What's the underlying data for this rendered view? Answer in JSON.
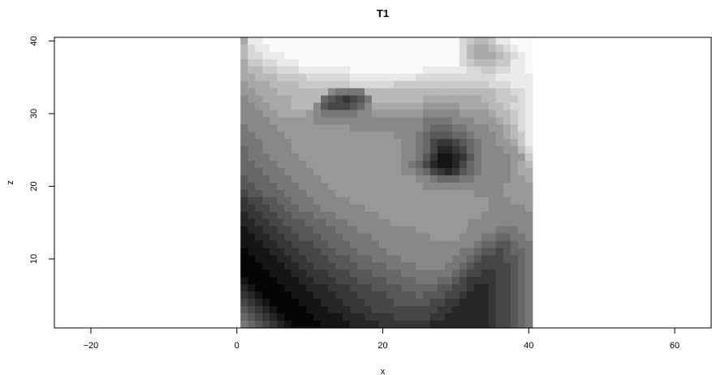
{
  "chart_data": {
    "type": "heatmap",
    "title": "T1",
    "xlabel": "x",
    "ylabel": "z",
    "xlim": [
      -25,
      65
    ],
    "ylim": [
      0.5,
      40.5
    ],
    "x_ticks": [
      -20,
      0,
      20,
      40,
      60
    ],
    "y_ticks": [
      10,
      20,
      30,
      40
    ],
    "colormap": "grayscale",
    "grid": false,
    "legend": "none",
    "image_x_range": [
      0.5,
      40.5
    ],
    "image_z_range": [
      0.5,
      40.5
    ],
    "description": "",
    "rows_top_to_bottom": [
      "AEEFFFFFFFFFFFFFFFFFFFFFFFFFFFDCBBCEEFFF",
      "BDEEFFFFFFFFFFFFFFFFFFFFFFFFFFDBAABCDEFF",
      "BDDEEEFFFFFFFFFFFFFFFFFFFFFFFFDBAAABCDEF",
      "ACCDDEEEFFFFFFFFFFFFFFFFFFFFFFDCBBBCCEEF",
      "ABBCCDDDEEEEEEEFFFFFFFFFFEEEEEEDDCCDDEEF",
      "AABBBCCCCDDDDDDEEEEEEEEEDDDDDDDDDDDEEEEE",
      "9AAABBBBCCCCCCCDDDDDDCCCCCCCCCCCCCDDDEEE",
      "99AAABBBBBBB87777BBBBBBBBBBBBBBBBBBCCDDE",
      "899AAAABBBB6543457BBBBBBBAAAAAAAABBCCCDE",
      "8899AAABBB85444568AAAAAAA99999AAAABBCDDE",
      "88899AAAA9877777889999999888889999ABBCDE",
      "88889999998888888888888887777888999ABCDE",
      "788889999999999888888888876667788899ABDE",
      "778888999999999999999888765556678889ABCE",
      "7778888999999999999999887643345678899ACE",
      "67788889999999999999998876422346788899BD",
      "677788889999999999999988753112357888899C",
      "66777888899999999999998764211246788889AB",
      "66677788889999999999998876432356788889AA",
      "566677788889999999999999887666778888899A",
      "5566677788889999999999999888888888889999",
      "4556667778888999999999999999999988889999",
      "3445566777888889999999999999999999888999",
      "3344556677788888899999999999999999888889",
      "2334455666777888888999999999999998888888",
      "22334455566677788888899999999999888888888",
      "1223344555666777888888889999999888877788",
      "1122334455566677778888888899998887766778",
      "1112233444556667777888888888888876655677",
      "0111223344455666777788888888887765545667",
      "0011122334445556667777888888877654445567",
      "0001112233444555666677778888776544444567",
      "0000111223334445556666777777765443344567",
      "1000011122333444555566667776654333344567",
      "2100001112223334445555666665544322344567",
      "3210000111222333444455556555443222344567",
      "4321000011122233344445555544332222344567",
      "5432100001112223334444444443322222344567",
      "6543210000111122233334444433222222344567",
      "7654321000011112222333333322222222344567"
    ],
    "shade_scale": "0 = black ... F = white"
  }
}
